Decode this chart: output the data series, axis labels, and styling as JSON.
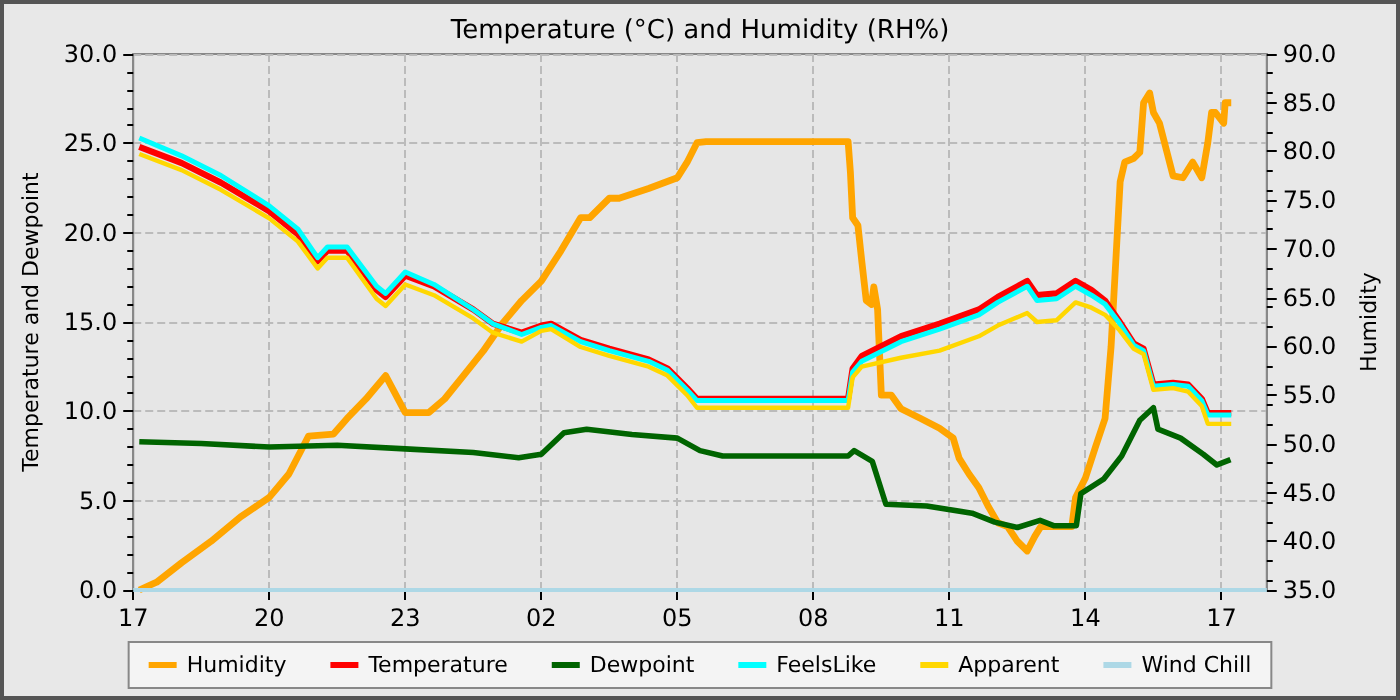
{
  "chart_data": {
    "type": "line",
    "title": "Temperature (°C) and Humidity (RH%)",
    "ylabel": "Temperature and Dewpoint",
    "y2label": "Humidity",
    "xlim": [
      "--01-01T17:00",
      "--01-02T18:00"
    ],
    "xticks": [
      {
        "value": "--01-01T17:00",
        "label": "17"
      },
      {
        "value": "--01-01T20:00",
        "label": "20"
      },
      {
        "value": "--01-01T23:00",
        "label": "23"
      },
      {
        "value": "--01-02T02:00",
        "label": "02"
      },
      {
        "value": "--01-02T05:00",
        "label": "05"
      },
      {
        "value": "--01-02T08:00",
        "label": "08"
      },
      {
        "value": "--01-02T11:00",
        "label": "11"
      },
      {
        "value": "--01-02T14:00",
        "label": "14"
      },
      {
        "value": "--01-02T17:00",
        "label": "17"
      }
    ],
    "ylim": [
      0,
      30
    ],
    "yticks": [
      {
        "value": 0,
        "label": "0.0"
      },
      {
        "value": 5,
        "label": "5.0"
      },
      {
        "value": 10,
        "label": "10.0"
      },
      {
        "value": 15,
        "label": "15.0"
      },
      {
        "value": 20,
        "label": "20.0"
      },
      {
        "value": 25,
        "label": "25.0"
      },
      {
        "value": 30,
        "label": "30.0"
      }
    ],
    "y2lim": [
      35,
      90
    ],
    "y2ticks": [
      {
        "value": 35,
        "label": "35.0"
      },
      {
        "value": 40,
        "label": "40.0"
      },
      {
        "value": 45,
        "label": "45.0"
      },
      {
        "value": 50,
        "label": "50.0"
      },
      {
        "value": 55,
        "label": "55.0"
      },
      {
        "value": 60,
        "label": "60.0"
      },
      {
        "value": 65,
        "label": "65.0"
      },
      {
        "value": 70,
        "label": "70.0"
      },
      {
        "value": 75,
        "label": "75.0"
      },
      {
        "value": 80,
        "label": "80.0"
      },
      {
        "value": 85,
        "label": "85.0"
      },
      {
        "value": 90,
        "label": "90.0"
      }
    ],
    "grid": true,
    "legend": "bottom",
    "marker": "none",
    "line_style": "solid",
    "x": [
      "--01-01T17:08",
      "--01-01T18:04",
      "--01-01T18:56",
      "--01-01T20:00",
      "--01-01T20:38",
      "--01-01T21:04",
      "--01-01T21:17",
      "--01-01T21:43",
      "--01-01T22:22",
      "--01-01T22:34",
      "--01-01T23:00",
      "--01-01T23:38",
      "--01-02T00:30",
      "--01-02T00:56",
      "--01-02T01:34",
      "--01-02T02:00",
      "--01-02T02:13",
      "--01-02T02:52",
      "--01-02T03:30",
      "--01-02T04:22",
      "--01-02T04:47",
      "--01-02T05:13",
      "--01-02T05:26",
      "--01-02T08:46",
      "--01-02T08:52",
      "--01-02T09:04",
      "--01-02T09:56",
      "--01-02T10:47",
      "--01-02T11:39",
      "--01-02T12:04",
      "--01-02T12:43",
      "--01-02T12:56",
      "--01-02T13:22",
      "--01-02T13:47",
      "--01-02T14:08",
      "--01-02T14:26",
      "--01-02T14:44",
      "--01-02T15:04",
      "--01-02T15:17",
      "--01-02T15:30",
      "--01-02T15:56",
      "--01-02T16:16",
      "--01-02T16:34",
      "--01-02T16:42",
      "--01-02T17:13"
    ],
    "series": [
      {
        "name": "Humidity",
        "color": "#ffa500",
        "axis": "y2",
        "x": [
          "--01-01T17:08",
          "--01-01T17:31",
          "--01-01T18:04",
          "--01-01T18:43",
          "--01-01T19:22",
          "--01-01T20:00",
          "--01-01T20:26",
          "--01-01T20:52",
          "--01-01T21:25",
          "--01-01T21:43",
          "--01-01T22:08",
          "--01-01T22:34",
          "--01-01T23:00",
          "--01-01T23:31",
          "--01-01T23:52",
          "--01-02T00:17",
          "--01-02T00:43",
          "--01-02T01:08",
          "--01-02T01:34",
          "--01-02T02:00",
          "--01-02T02:26",
          "--01-02T02:52",
          "--01-02T03:04",
          "--01-02T03:30",
          "--01-02T03:43",
          "--01-02T04:22",
          "--01-02T05:00",
          "--01-02T05:13",
          "--01-02T05:26",
          "--01-02T05:38",
          "--01-02T08:46",
          "--01-02T08:49",
          "--01-02T08:52",
          "--01-02T08:59",
          "--01-02T09:04",
          "--01-02T09:10",
          "--01-02T09:17",
          "--01-02T09:20",
          "--01-02T09:25",
          "--01-02T09:30",
          "--01-02T09:43",
          "--01-02T09:56",
          "--01-02T10:22",
          "--01-02T10:47",
          "--01-02T11:05",
          "--01-02T11:13",
          "--01-02T11:26",
          "--01-02T11:39",
          "--01-02T11:52",
          "--01-02T12:04",
          "--01-02T12:17",
          "--01-02T12:30",
          "--01-02T12:43",
          "--01-02T12:53",
          "--01-02T13:01",
          "--01-02T13:22",
          "--01-02T13:42",
          "--01-02T13:47",
          "--01-02T14:00",
          "--01-02T14:13",
          "--01-02T14:26",
          "--01-02T14:34",
          "--01-02T14:46",
          "--01-02T14:52",
          "--01-02T15:04",
          "--01-02T15:12",
          "--01-02T15:17",
          "--01-02T15:25",
          "--01-02T15:30",
          "--01-02T15:38",
          "--01-02T15:48",
          "--01-02T15:56",
          "--01-02T16:09",
          "--01-02T16:22",
          "--01-02T16:34",
          "--01-02T16:42",
          "--01-02T16:47",
          "--01-02T16:52",
          "--01-02T17:03",
          "--01-02T17:05",
          "--01-02T17:13"
        ],
        "values": [
          35,
          35.8,
          37.8,
          40,
          42.5,
          44.5,
          46.9,
          50.8,
          51,
          52.6,
          54.6,
          57,
          53.2,
          53.2,
          54.6,
          57,
          59.5,
          62.3,
          64.7,
          66.7,
          69.8,
          73.2,
          73.2,
          75.2,
          75.2,
          76.2,
          77.3,
          78.9,
          80.9,
          81,
          81,
          77.9,
          73.2,
          72.4,
          68.8,
          64.7,
          64.3,
          66.1,
          63.8,
          55,
          55,
          53.6,
          52.6,
          51.6,
          50.6,
          48.5,
          46.9,
          45.5,
          43.5,
          41.9,
          41.5,
          40,
          39,
          40.5,
          41.5,
          41.5,
          41.5,
          44.5,
          46.5,
          49.6,
          52.6,
          60,
          76.9,
          78.9,
          79.3,
          79.9,
          85,
          86,
          84,
          82.9,
          79.9,
          77.5,
          77.3,
          78.9,
          77.3,
          80.9,
          84,
          84,
          82.9,
          85,
          85
        ]
      },
      {
        "name": "Temperature",
        "color": "#ff0000",
        "values": [
          24.8,
          23.9,
          22.8,
          21.2,
          19.9,
          18.4,
          19,
          19,
          16.8,
          16.4,
          17.6,
          17,
          15.7,
          14.9,
          14.4,
          14.8,
          14.9,
          14,
          13.5,
          12.9,
          12.4,
          11.3,
          10.7,
          10.7,
          12.4,
          13.1,
          14.2,
          14.9,
          15.7,
          16.4,
          17.3,
          16.5,
          16.6,
          17.3,
          16.8,
          16.2,
          15.1,
          13.8,
          13.5,
          11.5,
          11.6,
          11.5,
          10.7,
          9.9,
          9.9
        ]
      },
      {
        "name": "Dewpoint",
        "color": "#006400",
        "x": [
          "--01-01T17:08",
          "--01-01T18:30",
          "--01-01T20:00",
          "--01-01T21:30",
          "--01-01T23:00",
          "--01-02T00:30",
          "--01-02T01:30",
          "--01-02T02:00",
          "--01-02T02:30",
          "--01-02T03:00",
          "--01-02T04:00",
          "--01-02T05:00",
          "--01-02T05:30",
          "--01-02T06:00",
          "--01-02T08:46",
          "--01-02T08:54",
          "--01-02T09:18",
          "--01-02T09:36",
          "--01-02T10:30",
          "--01-02T11:30",
          "--01-02T12:00",
          "--01-02T12:30",
          "--01-02T13:00",
          "--01-02T13:18",
          "--01-02T13:48",
          "--01-02T13:54",
          "--01-02T14:24",
          "--01-02T14:48",
          "--01-02T15:12",
          "--01-02T15:30",
          "--01-02T15:36",
          "--01-02T16:06",
          "--01-02T16:36",
          "--01-02T16:54",
          "--01-02T17:12"
        ],
        "values": [
          8.3,
          8.2,
          8.0,
          8.1,
          7.9,
          7.7,
          7.4,
          7.6,
          8.8,
          9.0,
          8.7,
          8.5,
          7.8,
          7.5,
          7.5,
          7.8,
          7.2,
          4.8,
          4.7,
          4.3,
          3.8,
          3.5,
          3.9,
          3.6,
          3.6,
          5.4,
          6.2,
          7.5,
          9.5,
          10.2,
          9.0,
          8.5,
          7.6,
          7.0,
          7.3
        ]
      },
      {
        "name": "FeelsLike",
        "color": "#00ffff",
        "values": [
          25.3,
          24.3,
          23.2,
          21.5,
          20.2,
          18.6,
          19.2,
          19.2,
          17.0,
          16.6,
          17.8,
          17.1,
          15.7,
          14.9,
          14.3,
          14.7,
          14.8,
          13.9,
          13.4,
          12.8,
          12.3,
          11.2,
          10.6,
          10.6,
          12.2,
          12.8,
          13.9,
          14.6,
          15.4,
          16.1,
          17.0,
          16.2,
          16.3,
          17.0,
          16.5,
          16.0,
          15.0,
          13.7,
          13.4,
          11.4,
          11.5,
          11.4,
          10.6,
          9.8,
          9.8
        ]
      },
      {
        "name": "Apparent",
        "color": "#ffd700",
        "values": [
          24.4,
          23.5,
          22.4,
          20.8,
          19.5,
          18.0,
          18.6,
          18.6,
          16.3,
          15.9,
          17.1,
          16.5,
          15.2,
          14.4,
          13.9,
          14.5,
          14.6,
          13.6,
          13.1,
          12.5,
          12.0,
          10.9,
          10.2,
          10.2,
          11.9,
          12.5,
          13.0,
          13.4,
          14.2,
          14.8,
          15.5,
          15.0,
          15.1,
          16.1,
          15.8,
          15.4,
          14.6,
          13.5,
          13.2,
          11.2,
          11.3,
          11.1,
          10.3,
          9.3,
          9.3
        ]
      },
      {
        "name": "Wind Chill",
        "color": "#add8e6",
        "x": [
          "--01-01T17:00",
          "--01-02T18:00"
        ],
        "values": [
          0,
          0
        ]
      }
    ]
  }
}
